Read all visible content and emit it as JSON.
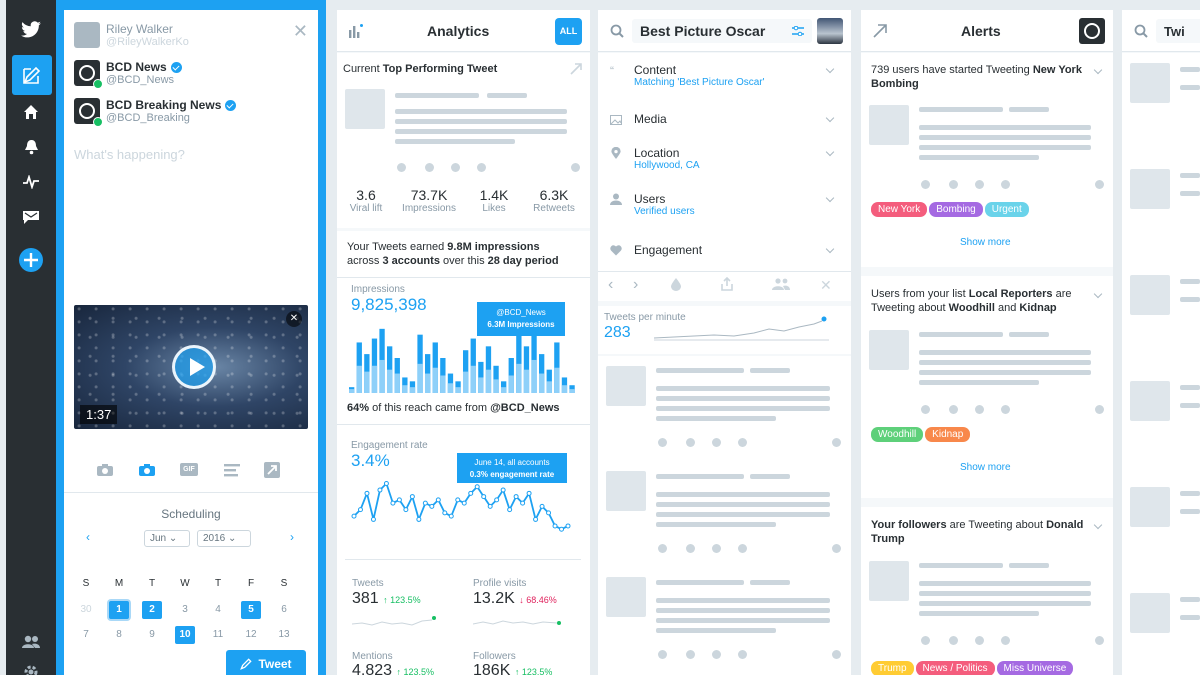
{
  "compose": {
    "user_name": "Riley Walker",
    "user_handle": "@RileyWalkerKo",
    "accounts": [
      {
        "name": "BCD News",
        "handle": "@BCD_News"
      },
      {
        "name": "BCD Breaking News",
        "handle": "@BCD_Breaking"
      }
    ],
    "placeholder": "What's happening?",
    "video_duration": "1:37",
    "media_gif": "GIF",
    "scheduling_title": "Scheduling",
    "month": "Jun",
    "year": "2016",
    "weekdays": [
      "S",
      "M",
      "T",
      "W",
      "T",
      "F",
      "S"
    ],
    "week1": [
      "30",
      "1",
      "2",
      "3",
      "4",
      "5",
      "6"
    ],
    "week2": [
      "7",
      "8",
      "9",
      "10",
      "11",
      "12",
      "13"
    ],
    "tweet_button": "Tweet"
  },
  "analytics": {
    "title": "Analytics",
    "all_badge": "ALL",
    "top_tweet_prefix": "Current ",
    "top_tweet_bold": "Top Performing Tweet",
    "stats": [
      {
        "value": "3.6",
        "label": "Viral lift"
      },
      {
        "value": "73.7K",
        "label": "Impressions"
      },
      {
        "value": "1.4K",
        "label": "Likes"
      },
      {
        "value": "6.3K",
        "label": "Retweets"
      }
    ],
    "earned_1": "Your Tweets earned ",
    "earned_2": "9.8M impressions",
    "earned_3": "across ",
    "earned_4": "3 accounts",
    "earned_5": " over this ",
    "earned_6": "28 day period",
    "impressions_label": "Impressions",
    "impressions_value": "9,825,398",
    "impr_tip_1": "@BCD_News",
    "impr_tip_2": "6.3M Impressions",
    "reach_pct": "64%",
    "reach_text": " of this reach came from ",
    "reach_handle": "@BCD_News",
    "engagement_label": "Engagement rate",
    "engagement_value": "3.4%",
    "eng_tip_1": "June 14, all accounts",
    "eng_tip_2": "0.3% engagement rate",
    "mini": [
      {
        "label": "Tweets",
        "value": "381",
        "delta": "↑ 123.5%",
        "color": "#17bf63"
      },
      {
        "label": "Profile visits",
        "value": "13.2K",
        "delta": "↓ 68.46%",
        "color": "#e0245e"
      },
      {
        "label": "Mentions",
        "value": "4,823",
        "delta": "↑ 123.5%",
        "color": "#17bf63"
      },
      {
        "label": "Followers",
        "value": "186K",
        "delta": "↑ 123.5%",
        "color": "#17bf63"
      }
    ]
  },
  "search": {
    "query": "Best Picture Oscar",
    "filters": [
      {
        "label": "Content",
        "sub": "Matching 'Best Picture Oscar'"
      },
      {
        "label": "Media",
        "sub": ""
      },
      {
        "label": "Location",
        "sub": "Hollywood, CA"
      },
      {
        "label": "Users",
        "sub": "Verified users"
      },
      {
        "label": "Engagement",
        "sub": ""
      }
    ],
    "tpm_label": "Tweets per minute",
    "tpm_value": "283"
  },
  "alerts": {
    "title": "Alerts",
    "a1_1": "739 users have started Tweeting ",
    "a1_2": "New York Bombing",
    "a1_tags": [
      {
        "text": "New York",
        "color": "#f45d7d"
      },
      {
        "text": "Bombing",
        "color": "#a56ae2"
      },
      {
        "text": "Urgent",
        "color": "#6ad3ea"
      }
    ],
    "show_more": "Show more",
    "a2_1": "Users from your list ",
    "a2_2": "Local Reporters",
    "a2_3": " are Tweeting about ",
    "a2_4": "Woodhill",
    "a2_5": " and ",
    "a2_6": "Kidnap",
    "a2_tags": [
      {
        "text": "Woodhill",
        "color": "#5ed07a"
      },
      {
        "text": "Kidnap",
        "color": "#f8884b"
      }
    ],
    "a3_1": "Your followers",
    "a3_2": " are Tweeting about ",
    "a3_3": "Donald Trump",
    "a3_tags": [
      {
        "text": "Trump",
        "color": "#ffcc33"
      },
      {
        "text": "News / Politics",
        "color": "#f45d7d"
      },
      {
        "text": "Miss Universe",
        "color": "#a56ae2"
      }
    ]
  },
  "col5": {
    "search_text": "Twi"
  },
  "chart_data": [
    {
      "type": "bar",
      "title": "Impressions",
      "values_dark": [
        3,
        26,
        20,
        28,
        33,
        24,
        18,
        8,
        6,
        30,
        20,
        26,
        18,
        10,
        6,
        22,
        28,
        16,
        24,
        14,
        6,
        18,
        30,
        24,
        34,
        20,
        12,
        26,
        8,
        4
      ],
      "values_light": [
        2,
        14,
        11,
        14,
        17,
        12,
        10,
        4,
        3,
        15,
        10,
        13,
        9,
        5,
        3,
        11,
        14,
        8,
        12,
        7,
        3,
        9,
        15,
        12,
        17,
        10,
        6,
        13,
        4,
        2
      ],
      "ylim": [
        0,
        36
      ]
    },
    {
      "type": "line",
      "title": "Engagement rate",
      "values": [
        14,
        18,
        28,
        12,
        30,
        34,
        22,
        24,
        18,
        26,
        12,
        22,
        20,
        24,
        16,
        14,
        24,
        22,
        28,
        32,
        26,
        20,
        24,
        30,
        18,
        26,
        22,
        28,
        12,
        20,
        16,
        8,
        6,
        8
      ],
      "ylim": [
        0,
        38
      ]
    }
  ]
}
